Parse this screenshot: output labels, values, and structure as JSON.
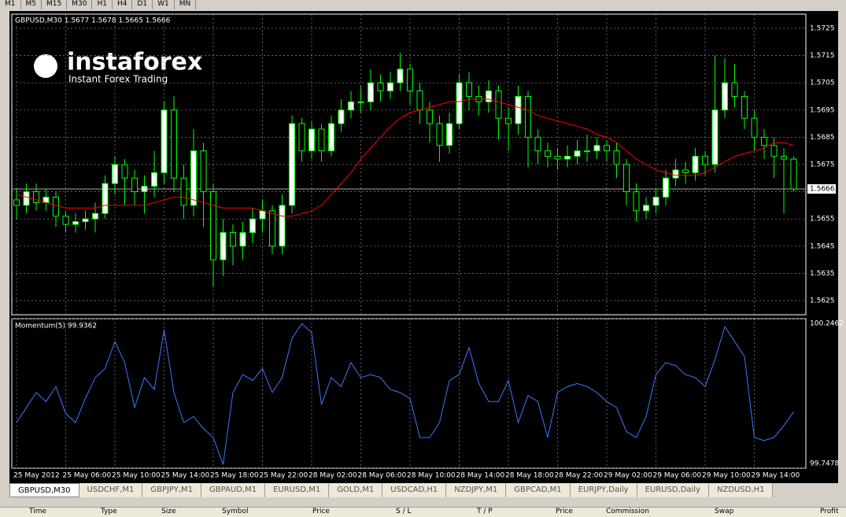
{
  "toolbar": [
    "M1",
    "M5",
    "M15",
    "M30",
    "H1",
    "H4",
    "D1",
    "W1",
    "MN"
  ],
  "logo": {
    "name": "instaforex",
    "tagline": "Instant Forex Trading"
  },
  "chart_data": [
    {
      "type": "candlestick",
      "title": "GBPUSD,M30 1.5677 1.5678 1.5665 1.5666",
      "categories": [
        "25 May 2012",
        null,
        null,
        null,
        null,
        "25 May 06:00",
        null,
        null,
        null,
        null,
        "25 May 10:00",
        null,
        null,
        null,
        null,
        "25 May 14:00",
        null,
        null,
        null,
        null,
        "25 May 18:00",
        null,
        null,
        null,
        null,
        "25 May 22:00",
        null,
        null,
        null,
        null,
        "28 May 02:00",
        null,
        null,
        null,
        null,
        "28 May 06:00",
        null,
        null,
        null,
        null,
        "28 May 10:00",
        null,
        null,
        null,
        null,
        "28 May 14:00",
        null,
        null,
        null,
        null,
        "28 May 18:00",
        null,
        null,
        null,
        null,
        "28 May 22:00",
        null,
        null,
        null,
        null,
        "29 May 02:00",
        null,
        null,
        null,
        null,
        "29 May 06:00",
        null,
        null,
        null,
        null,
        "29 May 10:00",
        null,
        null,
        null,
        null,
        "29 May 14:00",
        null,
        null,
        null,
        null
      ],
      "open": [
        1.5662,
        1.566,
        1.5665,
        1.5661,
        1.5663,
        1.5656,
        1.5653,
        1.5654,
        1.5655,
        1.5657,
        1.5668,
        1.5675,
        1.567,
        1.5665,
        1.5667,
        1.5672,
        1.5695,
        1.567,
        1.566,
        1.568,
        1.5665,
        1.564,
        1.565,
        1.5645,
        1.565,
        1.5655,
        1.5658,
        1.5645,
        1.566,
        1.569,
        1.568,
        1.5688,
        1.568,
        1.569,
        1.5695,
        1.5698,
        1.5698,
        1.5705,
        1.5702,
        1.5705,
        1.571,
        1.5702,
        1.5695,
        1.569,
        1.5682,
        1.569,
        1.5705,
        1.57,
        1.5698,
        1.5702,
        1.5692,
        1.569,
        1.57,
        1.5685,
        1.568,
        1.5678,
        1.5677,
        1.5678,
        1.568,
        1.568,
        1.5682,
        1.568,
        1.5675,
        1.5665,
        1.5658,
        1.566,
        1.5663,
        1.567,
        1.5673,
        1.5672,
        1.5678,
        1.5675,
        1.5695,
        1.5705,
        1.57,
        1.5692,
        1.5685,
        1.5682,
        1.5678,
        1.5677
      ],
      "high": [
        1.5666,
        1.5668,
        1.5668,
        1.5666,
        1.5665,
        1.5658,
        1.5657,
        1.5658,
        1.5661,
        1.5671,
        1.5678,
        1.5677,
        1.5673,
        1.5671,
        1.568,
        1.5698,
        1.57,
        1.5675,
        1.5688,
        1.5683,
        1.5668,
        1.5655,
        1.5653,
        1.5654,
        1.5659,
        1.5662,
        1.566,
        1.5664,
        1.5693,
        1.5692,
        1.5691,
        1.569,
        1.5693,
        1.5699,
        1.5702,
        1.5704,
        1.571,
        1.5708,
        1.5709,
        1.5716,
        1.5712,
        1.5705,
        1.5698,
        1.5693,
        1.5694,
        1.5708,
        1.5709,
        1.5704,
        1.5706,
        1.5704,
        1.5696,
        1.5704,
        1.5702,
        1.5688,
        1.5683,
        1.5681,
        1.5682,
        1.5684,
        1.5686,
        1.5685,
        1.5684,
        1.5683,
        1.5677,
        1.5668,
        1.5663,
        1.5666,
        1.5673,
        1.5677,
        1.5676,
        1.5681,
        1.568,
        1.5715,
        1.5714,
        1.5712,
        1.5702,
        1.5695,
        1.5688,
        1.5685,
        1.5681,
        1.5678
      ],
      "low": [
        1.5655,
        1.5657,
        1.5658,
        1.5658,
        1.5652,
        1.565,
        1.565,
        1.5651,
        1.565,
        1.5655,
        1.5664,
        1.566,
        1.566,
        1.5657,
        1.5663,
        1.5668,
        1.5665,
        1.5655,
        1.5656,
        1.5652,
        1.563,
        1.5634,
        1.5638,
        1.564,
        1.5646,
        1.565,
        1.5642,
        1.5642,
        1.5657,
        1.5676,
        1.5677,
        1.5676,
        1.5678,
        1.5687,
        1.5692,
        1.5694,
        1.5695,
        1.5698,
        1.5699,
        1.5702,
        1.5697,
        1.569,
        1.5683,
        1.5676,
        1.5679,
        1.5688,
        1.5695,
        1.5693,
        1.5694,
        1.5684,
        1.568,
        1.5686,
        1.5674,
        1.5675,
        1.5674,
        1.5673,
        1.5674,
        1.5675,
        1.5676,
        1.5677,
        1.5676,
        1.567,
        1.566,
        1.5654,
        1.5655,
        1.5657,
        1.566,
        1.5667,
        1.5668,
        1.5669,
        1.5671,
        1.5672,
        1.5692,
        1.5696,
        1.5688,
        1.568,
        1.5677,
        1.567,
        1.5657,
        1.5665
      ],
      "close": [
        1.566,
        1.5665,
        1.5661,
        1.5663,
        1.5656,
        1.5653,
        1.5654,
        1.5655,
        1.5657,
        1.5668,
        1.5675,
        1.567,
        1.5665,
        1.5667,
        1.5672,
        1.5695,
        1.567,
        1.566,
        1.568,
        1.5665,
        1.564,
        1.565,
        1.5645,
        1.565,
        1.5655,
        1.5658,
        1.5645,
        1.566,
        1.569,
        1.568,
        1.5688,
        1.568,
        1.569,
        1.5695,
        1.5698,
        1.5698,
        1.5705,
        1.5702,
        1.5705,
        1.571,
        1.5702,
        1.5695,
        1.569,
        1.5682,
        1.569,
        1.5705,
        1.57,
        1.5698,
        1.5702,
        1.5692,
        1.569,
        1.57,
        1.5685,
        1.568,
        1.5678,
        1.5677,
        1.5678,
        1.568,
        1.568,
        1.5682,
        1.568,
        1.5675,
        1.5665,
        1.5658,
        1.566,
        1.5663,
        1.567,
        1.5673,
        1.5672,
        1.5678,
        1.5675,
        1.5695,
        1.5705,
        1.57,
        1.5692,
        1.5685,
        1.5682,
        1.5678,
        1.5677,
        1.5666
      ],
      "moving_average": {
        "color": "#ff0000",
        "values": [
          1.5664,
          1.5663,
          1.5662,
          1.5661,
          1.566,
          1.5659,
          1.5659,
          1.5659,
          1.5659,
          1.566,
          1.566,
          1.566,
          1.566,
          1.566,
          1.5661,
          1.5662,
          1.5663,
          1.5663,
          1.5662,
          1.5661,
          1.566,
          1.5659,
          1.5659,
          1.5659,
          1.5659,
          1.5658,
          1.5657,
          1.5656,
          1.5656,
          1.5657,
          1.5658,
          1.566,
          1.5664,
          1.5668,
          1.5672,
          1.5677,
          1.5681,
          1.5685,
          1.5689,
          1.5692,
          1.5694,
          1.5695,
          1.5696,
          1.5697,
          1.5698,
          1.5698,
          1.5699,
          1.5699,
          1.5699,
          1.5698,
          1.5697,
          1.5696,
          1.5695,
          1.5693,
          1.5692,
          1.5691,
          1.569,
          1.5689,
          1.5688,
          1.5686,
          1.5685,
          1.5683,
          1.568,
          1.5677,
          1.5675,
          1.5673,
          1.5672,
          1.5671,
          1.5671,
          1.5671,
          1.5672,
          1.5674,
          1.5676,
          1.5678,
          1.5679,
          1.568,
          1.5681,
          1.5683,
          1.5683,
          1.5682
        ]
      },
      "last_price": 1.5666,
      "up_color": "#ffffff",
      "down_color": "#000000",
      "wick_color": "#00ff00",
      "ylim": [
        1.56198,
        1.57302
      ],
      "yticks": [
        1.5625,
        1.5635,
        1.5645,
        1.5655,
        1.5665,
        1.5675,
        1.5685,
        1.5695,
        1.5705,
        1.5715,
        1.5725
      ],
      "grid": true
    },
    {
      "type": "line",
      "title": "Momentum(5) 99.9362",
      "color": "#3c78ff",
      "values": [
        99.9,
        99.95,
        100.0,
        99.97,
        100.02,
        99.93,
        99.9,
        99.98,
        100.05,
        100.08,
        100.17,
        100.1,
        99.95,
        100.05,
        100.01,
        100.21,
        100.0,
        99.9,
        99.92,
        99.88,
        99.85,
        99.76,
        100.0,
        100.06,
        100.04,
        100.08,
        100.0,
        100.05,
        100.18,
        100.23,
        100.2,
        99.96,
        100.05,
        100.02,
        100.1,
        100.05,
        100.06,
        100.05,
        100.01,
        100.0,
        99.98,
        99.85,
        99.85,
        99.9,
        100.04,
        100.06,
        100.15,
        100.03,
        99.97,
        99.97,
        100.04,
        99.9,
        99.99,
        99.97,
        99.85,
        100.0,
        100.02,
        100.03,
        100.02,
        100.0,
        99.97,
        99.95,
        99.87,
        99.85,
        99.92,
        100.06,
        100.1,
        100.09,
        100.06,
        100.05,
        100.02,
        100.11,
        100.22,
        100.17,
        100.12,
        99.85,
        99.84,
        99.85,
        99.89,
        99.9362
      ],
      "ylim": [
        99.7478,
        100.2462
      ],
      "yticks": [
        99.7478,
        100.2462
      ],
      "grid": true
    }
  ],
  "tabs": [
    "GBPUSD,M30",
    "USDCHF,M1",
    "GBPJPY,M1",
    "GBPAUD,M1",
    "EURUSD,M1",
    "GOLD,M1",
    "USDCAD,H1",
    "NZDJPY,M1",
    "GBPCAD,M1",
    "EURJPY,Daily",
    "EURUSD,Daily",
    "NZDUSD,H1"
  ],
  "columns": [
    "Time",
    "Type",
    "Size",
    "Symbol",
    "Price",
    "S / L",
    "T / P",
    "Price",
    "Commission",
    "Swap",
    "Profit"
  ]
}
